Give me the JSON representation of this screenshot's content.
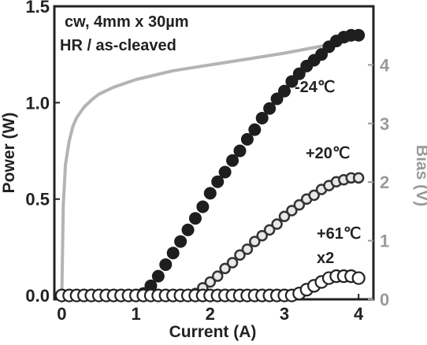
{
  "chart_data": {
    "type": "scatter",
    "annotation_lines": [
      "cw, 4mm x 30µm",
      "HR / as-cleaved"
    ],
    "xlabel": "Current (A)",
    "ylabel": "Power (W)",
    "y2label": "Bias (V)",
    "xlim": [
      -0.1,
      4.2
    ],
    "ylim": [
      -0.02,
      1.5
    ],
    "y2lim": [
      0,
      5
    ],
    "x_ticks": [
      "0",
      "1",
      "2",
      "3",
      "4"
    ],
    "y_ticks": [
      "0.0",
      "0.5",
      "1.0",
      "1.5"
    ],
    "y2_ticks": [
      "0",
      "1",
      "2",
      "3",
      "4"
    ],
    "series": [
      {
        "name": "-24℃",
        "marker": "filled",
        "color": "#222222",
        "x": [
          0,
          0.1,
          0.2,
          0.3,
          0.4,
          0.5,
          0.6,
          0.7,
          0.8,
          0.9,
          1.0,
          1.1,
          1.2,
          1.3,
          1.4,
          1.5,
          1.6,
          1.7,
          1.8,
          1.9,
          2.0,
          2.1,
          2.2,
          2.3,
          2.4,
          2.5,
          2.6,
          2.7,
          2.8,
          2.9,
          3.0,
          3.1,
          3.2,
          3.3,
          3.4,
          3.5,
          3.6,
          3.7,
          3.8,
          3.9,
          4.0
        ],
        "y": [
          0,
          0,
          0,
          0,
          0,
          0,
          0,
          0,
          0,
          0,
          0,
          0.01,
          0.05,
          0.1,
          0.16,
          0.22,
          0.28,
          0.34,
          0.4,
          0.46,
          0.53,
          0.59,
          0.64,
          0.7,
          0.75,
          0.81,
          0.86,
          0.92,
          0.97,
          1.02,
          1.06,
          1.11,
          1.15,
          1.19,
          1.22,
          1.25,
          1.29,
          1.32,
          1.34,
          1.35,
          1.35
        ]
      },
      {
        "name": "+20℃",
        "marker": "beaded",
        "color": "#555555",
        "x": [
          0,
          0.1,
          0.2,
          0.3,
          0.4,
          0.5,
          0.6,
          0.7,
          0.8,
          0.9,
          1.0,
          1.1,
          1.2,
          1.3,
          1.4,
          1.5,
          1.6,
          1.7,
          1.8,
          1.9,
          2.0,
          2.1,
          2.2,
          2.3,
          2.4,
          2.5,
          2.6,
          2.7,
          2.8,
          2.9,
          3.0,
          3.1,
          3.2,
          3.3,
          3.4,
          3.5,
          3.6,
          3.7,
          3.8,
          3.9,
          4.0
        ],
        "y": [
          0,
          0,
          0,
          0,
          0,
          0,
          0,
          0,
          0,
          0,
          0,
          0,
          0,
          0,
          0,
          0,
          0,
          0,
          0.01,
          0.04,
          0.07,
          0.1,
          0.14,
          0.17,
          0.21,
          0.24,
          0.28,
          0.31,
          0.34,
          0.37,
          0.41,
          0.44,
          0.47,
          0.5,
          0.52,
          0.55,
          0.57,
          0.59,
          0.6,
          0.61,
          0.61
        ]
      },
      {
        "name": "+61℃",
        "multiplier": "x2",
        "marker": "open",
        "color": "#222222",
        "x": [
          0,
          0.1,
          0.2,
          0.3,
          0.4,
          0.5,
          0.6,
          0.7,
          0.8,
          0.9,
          1.0,
          1.1,
          1.2,
          1.3,
          1.4,
          1.5,
          1.6,
          1.7,
          1.8,
          1.9,
          2.0,
          2.1,
          2.2,
          2.3,
          2.4,
          2.5,
          2.6,
          2.7,
          2.8,
          2.9,
          3.0,
          3.1,
          3.2,
          3.3,
          3.4,
          3.5,
          3.6,
          3.7,
          3.8,
          3.9,
          4.0
        ],
        "y": [
          0,
          0,
          0,
          0,
          0,
          0,
          0,
          0,
          0,
          0,
          0,
          0,
          0,
          0,
          0,
          0,
          0,
          0,
          0,
          0,
          0,
          0,
          0,
          0,
          0,
          0,
          0,
          0,
          0,
          0,
          0,
          0,
          0.01,
          0.03,
          0.05,
          0.07,
          0.09,
          0.1,
          0.1,
          0.1,
          0.09
        ]
      },
      {
        "name": "Bias (V)",
        "axis": "right",
        "marker": "line",
        "color": "#b4b4b4",
        "x": [
          0,
          0.02,
          0.05,
          0.1,
          0.15,
          0.2,
          0.3,
          0.4,
          0.5,
          0.7,
          1.0,
          1.5,
          2.0,
          2.5,
          3.0,
          3.5,
          4.0
        ],
        "y": [
          0,
          1.6,
          2.3,
          2.7,
          2.95,
          3.1,
          3.28,
          3.4,
          3.5,
          3.62,
          3.75,
          3.9,
          4.0,
          4.1,
          4.2,
          4.32,
          4.45
        ]
      }
    ]
  }
}
